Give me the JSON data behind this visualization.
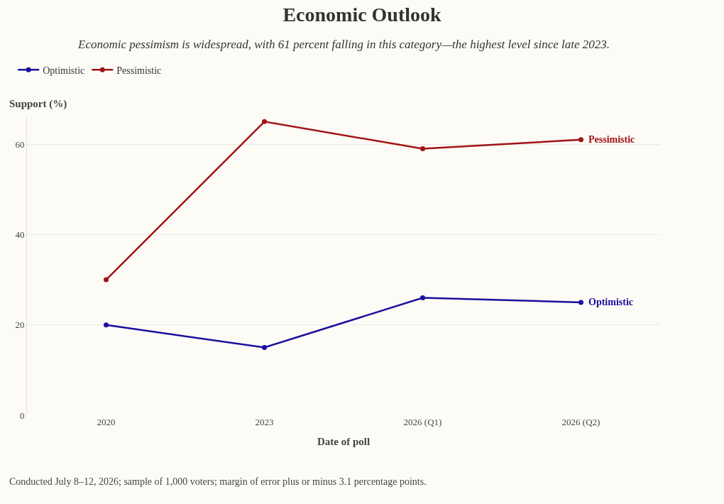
{
  "chart_data": {
    "type": "line",
    "title": "Economic Outlook",
    "subtitle": "Economic pessimism is widespread, with 61 percent falling in this category—the highest level since late 2023.",
    "xlabel": "Date of poll",
    "ylabel": "Support (%)",
    "categories": [
      "2020",
      "2023",
      "2026 (Q1)",
      "2026 (Q2)"
    ],
    "series": [
      {
        "name": "Optimistic",
        "color": "#1a0f9e",
        "values": [
          20,
          15,
          26,
          25
        ]
      },
      {
        "name": "Pessimistic",
        "color": "#a01414",
        "values": [
          30,
          65,
          59,
          61
        ]
      }
    ],
    "ylim": [
      0,
      66
    ],
    "yticks": [
      0,
      20,
      40,
      60
    ],
    "grid": "y",
    "legend": "top left",
    "marker": "circle",
    "line_style": "solid",
    "annotations": [
      "Conducted July 8–12, 2026; sample of 1,000 voters; margin of error plus or minus 3.1 percentage points."
    ]
  }
}
